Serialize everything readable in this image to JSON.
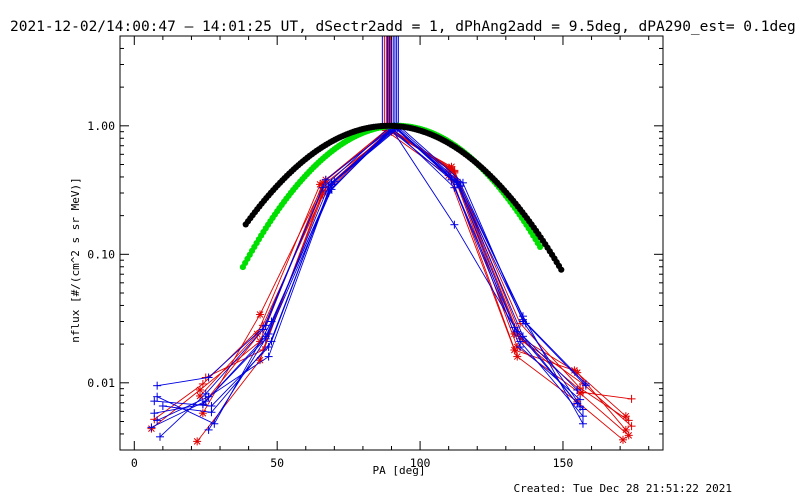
{
  "title": "2021-12-02/14:00:47 – 14:01:25 UT, dSectr2add = 1, dPhAng2add = 9.5deg, dPA290_est=  0.1deg",
  "footer": "Created: Tue Dec 28 21:51:22 2021",
  "chart_data": {
    "type": "scatter",
    "xlabel": "PA [deg]",
    "ylabel": "nflux [#/(cm^2 s sr MeV)]",
    "xlim": [
      -5,
      185
    ],
    "ylim": [
      0.003,
      5.0
    ],
    "yscale": "log",
    "x_ticks": [
      0,
      50,
      100,
      150
    ],
    "x_tick_labels": [
      "0",
      "50",
      "100",
      "150"
    ],
    "y_ticks": [
      0.01,
      0.1,
      1.0
    ],
    "y_tick_labels": [
      "0.01",
      "0.10",
      "1.00"
    ],
    "grid": false,
    "colors": {
      "red": "#e00000",
      "blue": "#0000e0",
      "green": "#00e000",
      "black": "#000000"
    },
    "vertical_lines": {
      "ymin": 1.0,
      "ymax": 5.0,
      "red_x": [
        87.5,
        88.2,
        89.0,
        89.6
      ],
      "blue_x": [
        86.8,
        88.6,
        89.3,
        90.0,
        90.6,
        91.2,
        91.8,
        92.4
      ]
    },
    "fits": [
      {
        "name": "",
        "color": "#00e000",
        "center": 92,
        "sigma": 24.0,
        "peak": 1.0,
        "x_min": 38,
        "x_max": 142
      },
      {
        "name": "",
        "color": "#000000",
        "center": 89,
        "sigma": 26.6,
        "peak": 1.0,
        "x_min": 39,
        "x_max": 150
      }
    ],
    "series": [
      {
        "color": "#e00000",
        "marker": "star",
        "x": [
          6,
          23,
          44,
          66,
          89,
          111,
          134,
          156,
          173
        ],
        "y": [
          0.0044,
          0.0088,
          0.021,
          0.36,
          0.93,
          0.46,
          0.019,
          0.0083,
          0.0039
        ]
      },
      {
        "color": "#e00000",
        "marker": "plus",
        "x": [
          7,
          24,
          45,
          67,
          90,
          112,
          135,
          157,
          174
        ],
        "y": [
          0.0052,
          0.0098,
          0.028,
          0.33,
          0.95,
          0.43,
          0.022,
          0.0098,
          0.0046
        ]
      },
      {
        "color": "#e00000",
        "marker": "star",
        "x": [
          22,
          44,
          66,
          89,
          111,
          133,
          155,
          172
        ],
        "y": [
          0.0035,
          0.015,
          0.31,
          0.91,
          0.48,
          0.024,
          0.012,
          0.0043
        ]
      },
      {
        "color": "#e00000",
        "marker": "plus",
        "x": [
          24,
          45,
          67,
          90,
          112,
          135,
          156,
          173
        ],
        "y": [
          0.0068,
          0.026,
          0.36,
          0.9,
          0.44,
          0.029,
          0.0091,
          0.0051
        ]
      },
      {
        "color": "#e00000",
        "marker": "star",
        "x": [
          23,
          43,
          65,
          88,
          110,
          133,
          154,
          172
        ],
        "y": [
          0.0079,
          0.024,
          0.35,
          0.92,
          0.41,
          0.018,
          0.0125,
          0.0055
        ]
      },
      {
        "color": "#e00000",
        "marker": "plus",
        "x": [
          25,
          45,
          66,
          90,
          112,
          136,
          157,
          174
        ],
        "y": [
          0.011,
          0.018,
          0.29,
          0.94,
          0.45,
          0.021,
          0.0084,
          0.0075
        ]
      },
      {
        "color": "#e00000",
        "marker": "star",
        "x": [
          24,
          44,
          67,
          89,
          110,
          134,
          155,
          171
        ],
        "y": [
          0.0058,
          0.034,
          0.38,
          0.96,
          0.46,
          0.016,
          0.0071,
          0.0036
        ]
      },
      {
        "color": "#0000e0",
        "marker": "plus",
        "x": [
          6,
          25,
          46,
          68,
          91,
          113,
          136,
          158
        ],
        "y": [
          0.0045,
          0.0072,
          0.022,
          0.34,
          0.98,
          0.35,
          0.031,
          0.0098
        ]
      },
      {
        "color": "#0000e0",
        "marker": "plus",
        "x": [
          8,
          26,
          46,
          67,
          90,
          112,
          134,
          156
        ],
        "y": [
          0.0095,
          0.011,
          0.028,
          0.38,
          0.95,
          0.17,
          0.025,
          0.0065
        ]
      },
      {
        "color": "#0000e0",
        "marker": "plus",
        "x": [
          7,
          27,
          47,
          68,
          91,
          113,
          135,
          157
        ],
        "y": [
          0.0072,
          0.0066,
          0.019,
          0.31,
          0.97,
          0.36,
          0.021,
          0.0055
        ]
      },
      {
        "color": "#0000e0",
        "marker": "plus",
        "x": [
          9,
          25,
          45,
          66,
          89,
          111,
          133,
          155
        ],
        "y": [
          0.0038,
          0.0082,
          0.026,
          0.33,
          0.96,
          0.38,
          0.027,
          0.0088
        ]
      },
      {
        "color": "#0000e0",
        "marker": "plus",
        "x": [
          8,
          26,
          47,
          69,
          92,
          114,
          137,
          158
        ],
        "y": [
          0.0051,
          0.0078,
          0.016,
          0.35,
          0.99,
          0.36,
          0.029,
          0.0095
        ]
      },
      {
        "color": "#0000e0",
        "marker": "plus",
        "x": [
          10,
          27,
          48,
          69,
          92,
          114,
          136,
          157
        ],
        "y": [
          0.0066,
          0.0059,
          0.021,
          0.36,
          0.96,
          0.34,
          0.033,
          0.0048
        ]
      },
      {
        "color": "#0000e0",
        "marker": "plus",
        "x": [
          7,
          24,
          46,
          68,
          90,
          112,
          135,
          156
        ],
        "y": [
          0.0058,
          0.0068,
          0.023,
          0.3,
          0.97,
          0.33,
          0.019,
          0.0074
        ]
      },
      {
        "color": "#0000e0",
        "marker": "plus",
        "x": [
          26,
          47,
          69,
          91,
          113,
          136,
          155
        ],
        "y": [
          0.0043,
          0.024,
          0.32,
          0.99,
          0.37,
          0.023,
          0.0069
        ]
      },
      {
        "color": "#0000e0",
        "marker": "plus",
        "x": [
          8,
          28,
          48,
          70,
          93,
          115,
          136,
          157
        ],
        "y": [
          0.0078,
          0.0048,
          0.03,
          0.37,
          0.98,
          0.36,
          0.03,
          0.0062
        ]
      }
    ]
  }
}
